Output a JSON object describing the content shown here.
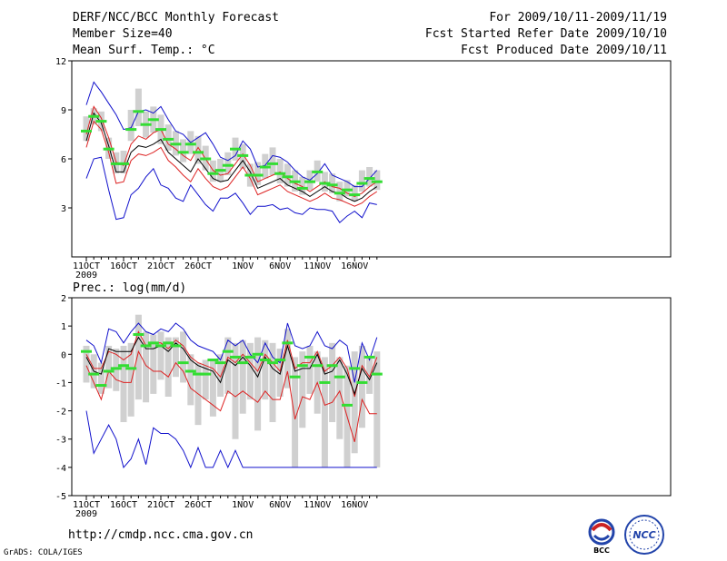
{
  "header": {
    "title": "DERF/NCC/BCC Monthly Forecast",
    "member_size": "Member Size=40",
    "variable": "Mean Surf. Temp.: °C",
    "period": "For 2009/10/11-2009/11/19",
    "fcst_started": "Fcst Started Refer Date 2009/10/10",
    "fcst_produced": "Fcst Produced Date 2009/10/11"
  },
  "footer": {
    "url": "http://cmdp.ncc.cma.gov.cn",
    "grads": "GrADS: COLA/IGES",
    "logo_bcc": "BCC",
    "logo_ncc": "NCC"
  },
  "colors": {
    "bar": "#d0d0d0",
    "green": "#33dd33",
    "red": "#dd2222",
    "blue": "#1111cc",
    "black": "#000000"
  },
  "chart_data": [
    {
      "type": "line",
      "title": "Mean Surf. Temp.: °C",
      "ylim": [
        0,
        12
      ],
      "yticks": [
        3,
        6,
        9,
        12
      ],
      "ytick_labels": [
        "3",
        "6",
        "9",
        "12"
      ],
      "xtick_labels": [
        "11OCT",
        "16OCT",
        "21OCT",
        "26OCT",
        "1NOV",
        "6NOV",
        "11NOV",
        "16NOV"
      ],
      "xtick_index": [
        0,
        5,
        10,
        15,
        21,
        26,
        31,
        36
      ],
      "year_label": "2009",
      "days": 40,
      "series": [
        {
          "name": "max",
          "color": "blue",
          "values": [
            9.3,
            10.7,
            10.1,
            9.4,
            8.7,
            7.8,
            7.9,
            8.9,
            9.0,
            8.8,
            9.2,
            8.4,
            7.7,
            7.5,
            7.0,
            7.3,
            7.6,
            6.9,
            6.1,
            5.9,
            6.2,
            7.1,
            6.6,
            5.5,
            5.6,
            6.2,
            6.1,
            5.8,
            5.3,
            4.9,
            4.7,
            5.1,
            5.7,
            5.0,
            4.8,
            4.6,
            4.3,
            4.3,
            4.8,
            5.3
          ]
        },
        {
          "name": "upper",
          "color": "red",
          "values": [
            7.5,
            9.2,
            8.5,
            7.3,
            5.8,
            5.6,
            6.9,
            7.4,
            7.2,
            7.6,
            7.8,
            6.9,
            6.6,
            6.2,
            5.9,
            6.7,
            6.0,
            5.3,
            5.0,
            5.1,
            5.7,
            6.3,
            5.6,
            4.6,
            4.8,
            5.0,
            5.2,
            4.8,
            4.5,
            4.3,
            4.0,
            4.3,
            4.6,
            4.3,
            4.2,
            3.9,
            3.7,
            3.9,
            4.3,
            4.6
          ]
        },
        {
          "name": "mean",
          "color": "black",
          "values": [
            7.1,
            8.8,
            8.2,
            6.8,
            5.2,
            5.2,
            6.4,
            6.8,
            6.7,
            6.9,
            7.2,
            6.4,
            6.0,
            5.6,
            5.2,
            6.0,
            5.4,
            4.8,
            4.6,
            4.7,
            5.3,
            5.9,
            5.2,
            4.2,
            4.4,
            4.6,
            4.8,
            4.4,
            4.2,
            4.0,
            3.7,
            4.0,
            4.3,
            4.0,
            3.9,
            3.6,
            3.4,
            3.6,
            4.0,
            4.3
          ]
        },
        {
          "name": "lower",
          "color": "red",
          "values": [
            6.7,
            8.3,
            7.8,
            6.4,
            4.5,
            4.6,
            5.9,
            6.3,
            6.2,
            6.4,
            6.7,
            5.9,
            5.5,
            5.0,
            4.6,
            5.4,
            4.8,
            4.3,
            4.1,
            4.3,
            4.9,
            5.5,
            4.8,
            3.8,
            4.0,
            4.2,
            4.4,
            4.0,
            3.8,
            3.6,
            3.4,
            3.6,
            3.9,
            3.6,
            3.5,
            3.3,
            3.1,
            3.3,
            3.7,
            4.0
          ]
        },
        {
          "name": "min",
          "color": "blue",
          "values": [
            4.8,
            6.0,
            6.1,
            4.1,
            2.3,
            2.4,
            3.8,
            4.2,
            4.9,
            5.4,
            4.4,
            4.2,
            3.6,
            3.4,
            4.4,
            3.8,
            3.2,
            2.8,
            3.6,
            3.6,
            3.9,
            3.3,
            2.6,
            3.1,
            3.1,
            3.2,
            2.9,
            3.0,
            2.7,
            2.6,
            3.0,
            2.9,
            2.9,
            2.8,
            2.1,
            2.5,
            2.8,
            2.4,
            3.3,
            3.2
          ]
        },
        {
          "name": "observed",
          "color": "green",
          "values": [
            7.7,
            8.6,
            8.3,
            6.6,
            5.7,
            5.7,
            7.8,
            8.9,
            8.1,
            8.4,
            7.8,
            7.2,
            6.9,
            6.4,
            6.9,
            6.4,
            6.0,
            5.1,
            5.3,
            5.6,
            6.6,
            6.2,
            5.0,
            5.0,
            5.5,
            5.7,
            5.1,
            4.9,
            4.6,
            4.2,
            4.6,
            5.2,
            4.5,
            4.4,
            3.9,
            4.1,
            3.8,
            4.5,
            4.8,
            4.6
          ]
        },
        {
          "name": "bar_low",
          "color": "bar",
          "values": [
            7.1,
            8.1,
            7.7,
            6.0,
            5.1,
            5.1,
            7.1,
            8.0,
            7.3,
            7.6,
            6.9,
            6.5,
            6.2,
            5.8,
            6.3,
            5.7,
            5.3,
            4.6,
            4.6,
            5.0,
            5.9,
            5.4,
            4.3,
            4.4,
            4.8,
            5.0,
            4.5,
            4.3,
            4.0,
            3.8,
            4.1,
            4.6,
            4.0,
            3.9,
            3.4,
            3.7,
            3.4,
            4.0,
            4.3,
            4.1
          ]
        },
        {
          "name": "bar_high",
          "color": "bar",
          "values": [
            8.6,
            9.1,
            8.9,
            7.3,
            6.4,
            6.5,
            9.0,
            10.3,
            8.9,
            9.2,
            8.7,
            8.1,
            7.7,
            7.2,
            7.7,
            7.4,
            6.8,
            5.9,
            6.0,
            6.4,
            7.3,
            6.9,
            5.7,
            5.8,
            6.3,
            6.7,
            6.0,
            5.7,
            5.3,
            4.9,
            5.3,
            5.9,
            5.2,
            5.1,
            4.6,
            4.7,
            4.4,
            5.3,
            5.5,
            5.3
          ]
        }
      ]
    },
    {
      "type": "line",
      "title": "Prec.: log(mm/d)",
      "ylim": [
        -5,
        2
      ],
      "yticks": [
        -5,
        -4,
        -3,
        -2,
        -1,
        0,
        1,
        2
      ],
      "ytick_labels": [
        "-5",
        "-4",
        "-3",
        "-2",
        "-1",
        "0",
        "1",
        "2"
      ],
      "xtick_labels": [
        "11OCT",
        "16OCT",
        "21OCT",
        "26OCT",
        "1NOV",
        "6NOV",
        "11NOV",
        "16NOV"
      ],
      "xtick_index": [
        0,
        5,
        10,
        15,
        21,
        26,
        31,
        36
      ],
      "year_label": "2009",
      "days": 40,
      "series": [
        {
          "name": "max",
          "color": "blue",
          "values": [
            0.5,
            0.3,
            -0.3,
            0.9,
            0.8,
            0.4,
            0.8,
            1.1,
            0.8,
            0.7,
            0.9,
            0.8,
            1.1,
            0.9,
            0.5,
            0.3,
            0.2,
            0.1,
            -0.2,
            0.5,
            0.3,
            0.5,
            0.0,
            -0.3,
            0.4,
            -0.1,
            -0.3,
            1.1,
            0.3,
            0.2,
            0.3,
            0.8,
            0.3,
            0.2,
            0.5,
            0.3,
            -1.0,
            0.4,
            -0.2,
            0.6
          ]
        },
        {
          "name": "upper",
          "color": "red",
          "values": [
            0.0,
            -0.5,
            -0.5,
            0.1,
            0.0,
            -0.2,
            0.0,
            0.8,
            0.3,
            0.4,
            0.4,
            0.2,
            0.5,
            0.3,
            -0.1,
            -0.3,
            -0.4,
            -0.5,
            -0.8,
            -0.1,
            -0.3,
            0.0,
            -0.3,
            -0.6,
            0.0,
            -0.3,
            -0.6,
            0.5,
            -0.5,
            -0.3,
            -0.3,
            0.1,
            -0.6,
            -0.4,
            -0.1,
            -0.5,
            -1.5,
            -0.4,
            -0.8,
            -0.1
          ]
        },
        {
          "name": "mean",
          "color": "black",
          "values": [
            -0.1,
            -0.6,
            -0.7,
            0.2,
            0.1,
            0.1,
            0.1,
            0.6,
            0.2,
            0.2,
            0.3,
            0.1,
            0.4,
            0.2,
            -0.2,
            -0.4,
            -0.5,
            -0.6,
            -1.0,
            -0.2,
            -0.4,
            -0.1,
            -0.4,
            -0.8,
            -0.1,
            -0.5,
            -0.7,
            0.3,
            -0.6,
            -0.5,
            -0.5,
            0.0,
            -0.7,
            -0.6,
            -0.2,
            -0.7,
            -1.4,
            -0.5,
            -0.9,
            -0.3
          ]
        },
        {
          "name": "lower",
          "color": "red",
          "values": [
            -0.4,
            -1.0,
            -1.6,
            -0.6,
            -0.9,
            -1.0,
            -1.0,
            0.1,
            -0.4,
            -0.6,
            -0.6,
            -0.8,
            -0.3,
            -0.6,
            -1.2,
            -1.4,
            -1.6,
            -1.8,
            -2.0,
            -1.3,
            -1.5,
            -1.3,
            -1.5,
            -1.7,
            -1.3,
            -1.6,
            -1.6,
            -0.6,
            -2.3,
            -1.5,
            -1.6,
            -1.0,
            -1.8,
            -1.7,
            -1.3,
            -2.2,
            -3.1,
            -1.6,
            -2.1,
            -2.1
          ]
        },
        {
          "name": "min",
          "color": "blue",
          "values": [
            -2.0,
            -3.5,
            -3.0,
            -2.5,
            -3.0,
            -4.0,
            -3.7,
            -3.0,
            -3.9,
            -2.6,
            -2.8,
            -2.8,
            -3.0,
            -3.4,
            -4.0,
            -3.3,
            -4.0,
            -4.0,
            -3.4,
            -4.0,
            -3.4,
            -4.0,
            -4.0,
            -4.0,
            -4.0,
            -4.0,
            -4.0,
            -4.0,
            -4.0,
            -4.0,
            -4.0,
            -4.0,
            -4.0,
            -4.0,
            -4.0,
            -4.0,
            -4.0,
            -4.0,
            -4.0,
            -4.0
          ]
        },
        {
          "name": "observed",
          "color": "green",
          "values": [
            0.1,
            -0.7,
            -1.1,
            -0.6,
            -0.5,
            -0.4,
            -0.5,
            0.7,
            0.3,
            0.4,
            0.3,
            0.4,
            0.3,
            -0.3,
            -0.6,
            -0.7,
            -0.7,
            -0.2,
            -0.3,
            0.1,
            -0.1,
            -0.3,
            -0.1,
            0.0,
            -0.2,
            -0.3,
            -0.2,
            0.4,
            -0.8,
            -0.4,
            -0.1,
            -0.4,
            -1.0,
            -0.4,
            -0.8,
            -1.8,
            -0.5,
            -1.0,
            -0.1,
            -0.7
          ]
        },
        {
          "name": "bar_low",
          "color": "bar",
          "values": [
            -1.0,
            -1.2,
            -1.4,
            -1.2,
            -1.3,
            -2.4,
            -2.2,
            -1.6,
            -1.7,
            -1.4,
            -0.9,
            -1.5,
            -0.8,
            -1.0,
            -1.8,
            -2.5,
            -1.6,
            -2.2,
            -1.5,
            -1.4,
            -3.0,
            -2.1,
            -1.6,
            -2.7,
            -1.6,
            -2.4,
            -1.5,
            -1.2,
            -4.0,
            -2.6,
            -1.4,
            -2.1,
            -4.0,
            -2.4,
            -3.0,
            -4.0,
            -3.5,
            -2.6,
            -1.4,
            -4.0
          ]
        },
        {
          "name": "bar_high",
          "color": "bar",
          "values": [
            0.3,
            0.0,
            -0.3,
            0.3,
            0.2,
            0.3,
            0.4,
            1.4,
            0.8,
            0.7,
            0.8,
            0.6,
            0.6,
            0.8,
            0.0,
            -0.3,
            -0.2,
            -0.2,
            0.0,
            0.6,
            0.4,
            0.5,
            0.4,
            0.6,
            0.5,
            0.4,
            0.2,
            0.9,
            -0.1,
            0.1,
            0.3,
            0.1,
            -0.1,
            0.4,
            -0.1,
            -0.4,
            0.1,
            0.3,
            -0.1,
            0.1
          ]
        }
      ]
    }
  ]
}
